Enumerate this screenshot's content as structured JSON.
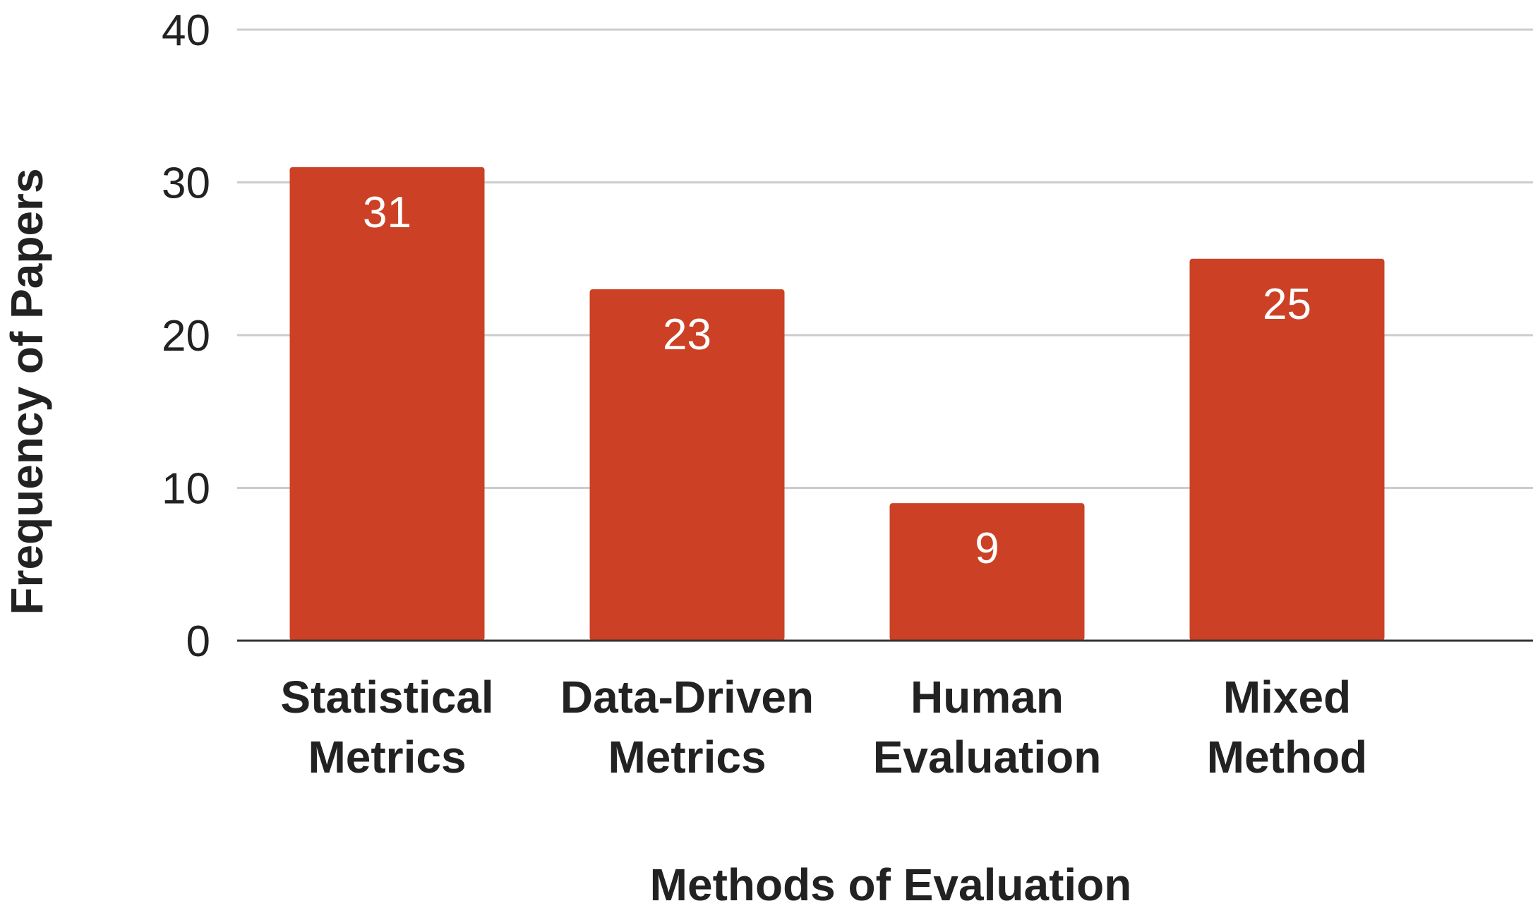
{
  "chart_data": {
    "type": "bar",
    "categories": [
      [
        "Statistical",
        "Metrics"
      ],
      [
        "Data-Driven",
        "Metrics"
      ],
      [
        "Human",
        "Evaluation"
      ],
      [
        "Mixed",
        "Method"
      ]
    ],
    "values": [
      31,
      23,
      9,
      25
    ],
    "data_labels": [
      "31",
      "23",
      "9",
      "25"
    ],
    "xlabel": "Methods of Evaluation",
    "ylabel": "Frequency of Papers",
    "ylim": [
      0,
      40
    ],
    "yticks": [
      0,
      10,
      20,
      30,
      40
    ],
    "ytick_labels": [
      "0",
      "10",
      "20",
      "30",
      "40"
    ],
    "grid": true,
    "legend": "none",
    "bar_color": "#cc4125",
    "grid_color": "#cccccc",
    "axis_color": "#333333"
  }
}
